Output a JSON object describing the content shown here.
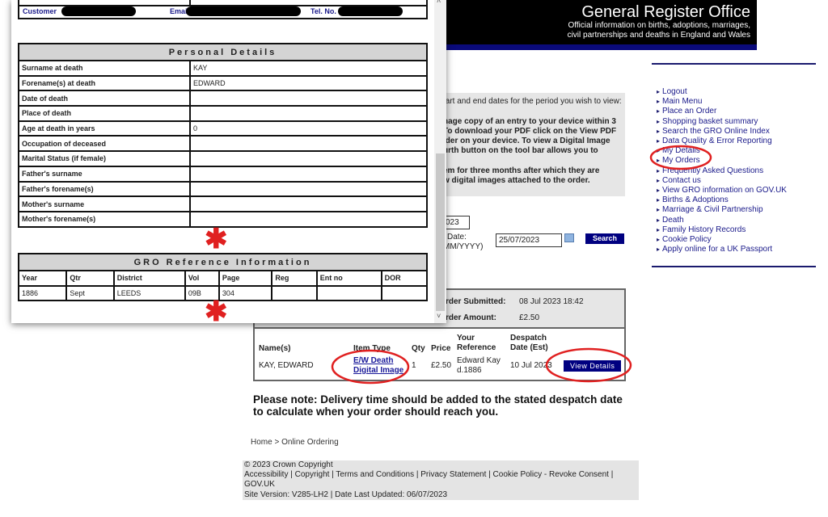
{
  "header": {
    "title": "General Register Office",
    "subtitle_1": "Official information on births, adoptions, marriages,",
    "subtitle_2": "civil partnerships and deaths in England and Wales"
  },
  "nav": {
    "items": [
      "Logout",
      "Main Menu",
      "Place an Order",
      "Shopping basket summary",
      "Search the GRO Online Index",
      "Data Quality & Error Reporting",
      "My Details",
      "My Orders",
      "Frequently Asked Questions",
      "Contact us",
      "View GRO information on GOV.UK",
      "Births & Adoptions",
      "Marriage & Civil Partnership",
      "Death",
      "Family History Records",
      "Cookie Policy",
      "Apply online for a UK Passport"
    ]
  },
  "info": {
    "line1": "tart and end dates for the period you wish to view:",
    "p1": [
      "nage copy of an entry to your device within 3",
      "To download your PDF click on the View PDF",
      "lder on your device. To view a Digital Image",
      "urth button on the tool bar allows you to"
    ],
    "p2": [
      "em for three months after which they are",
      "w digital images attached to the order."
    ]
  },
  "search": {
    "start_value": "023",
    "end_label": "Date:",
    "end_format": "MM/YYYY)",
    "end_value": "25/07/2023",
    "button": "Search"
  },
  "order": {
    "submitted_label": "rder Submitted:",
    "submitted_value": "08 Jul 2023 18:42",
    "amount_label": "rder Amount:",
    "amount_value": "£2.50",
    "columns": [
      "Name(s)",
      "Item Type",
      "Qty",
      "Price",
      "Your Reference",
      "Despatch Date (Est)"
    ],
    "row": {
      "name": "KAY, EDWARD",
      "item_type_1": "E/W Death",
      "item_type_2": "Digital Image",
      "qty": "1",
      "price": "£2.50",
      "reference_1": "Edward Kay",
      "reference_2": "d.1886",
      "despatch": "10 Jul 2023",
      "button": "View Details"
    }
  },
  "note": "Please note: Delivery time should be added to the stated despatch date to calculate when your order should reach you.",
  "breadcrumb": "Home > Online Ordering",
  "footer": {
    "line1": "© 2023 Crown Copyright",
    "line2": "Accessibility | Copyright | Terms and Conditions | Privacy Statement | Cookie Policy - Revoke Consent |",
    "line3": "GOV.UK",
    "line4": "Site Version: V285-LH2 | Date Last Updated: 06/07/2023"
  },
  "popup": {
    "customer_label": "Customer",
    "email_label": "Email",
    "tel_label": "Tel. No.",
    "personal_title": "Personal Details",
    "personal_rows": [
      [
        "Surname at death",
        "KAY"
      ],
      [
        "Forename(s) at death",
        "EDWARD"
      ],
      [
        "Date of death",
        ""
      ],
      [
        "Place of death",
        ""
      ],
      [
        "Age at death in years",
        "0"
      ],
      [
        "Occupation of deceased",
        ""
      ],
      [
        "Marital Status (if female)",
        ""
      ],
      [
        "Father's surname",
        ""
      ],
      [
        "Father's forename(s)",
        ""
      ],
      [
        "Mother's surname",
        ""
      ],
      [
        "Mother's forename(s)",
        ""
      ]
    ],
    "gro_title": "GRO Reference Information",
    "gro_headers": [
      "Year",
      "Qtr",
      "District",
      "Vol",
      "Page",
      "Reg",
      "Ent no",
      "DOR"
    ],
    "gro_values": [
      "1886",
      "Sept",
      "LEEDS",
      "09B",
      "304",
      "",
      "",
      ""
    ]
  },
  "annotation_color": "#e02020"
}
